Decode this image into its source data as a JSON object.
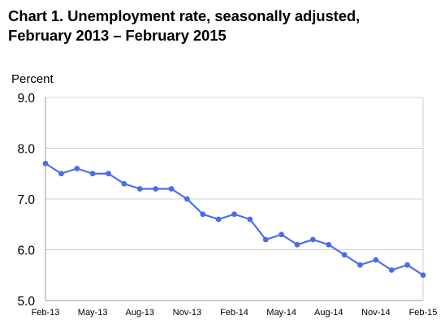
{
  "chart_data": {
    "type": "line",
    "title": "Chart 1. Unemployment rate, seasonally adjusted,",
    "subtitle": "February 2013 – February 2015",
    "ylabel": "Percent",
    "xlabel": "",
    "ylim": [
      5.0,
      9.0
    ],
    "yticks": [
      "9.0",
      "8.0",
      "7.0",
      "6.0",
      "5.0"
    ],
    "ytick_values": [
      9.0,
      8.0,
      7.0,
      6.0,
      5.0
    ],
    "x": [
      "Feb-13",
      "Mar-13",
      "Apr-13",
      "May-13",
      "Jun-13",
      "Jul-13",
      "Aug-13",
      "Sep-13",
      "Oct-13",
      "Nov-13",
      "Dec-13",
      "Jan-14",
      "Feb-14",
      "Mar-14",
      "Apr-14",
      "May-14",
      "Jun-14",
      "Jul-14",
      "Aug-14",
      "Sep-14",
      "Oct-14",
      "Nov-14",
      "Dec-14",
      "Jan-15",
      "Feb-15"
    ],
    "xtick_labels": [
      "Feb-13",
      "May-13",
      "Aug-13",
      "Nov-13",
      "Feb-14",
      "May-14",
      "Aug-14",
      "Nov-14",
      "Feb-15"
    ],
    "xtick_every": 3,
    "series": [
      {
        "values": [
          7.7,
          7.5,
          7.6,
          7.5,
          7.5,
          7.3,
          7.2,
          7.2,
          7.2,
          7.0,
          6.7,
          6.6,
          6.7,
          6.6,
          6.2,
          6.3,
          6.1,
          6.2,
          6.1,
          5.9,
          5.7,
          5.8,
          5.6,
          5.7,
          5.5
        ],
        "color": "#4a6ee8"
      }
    ],
    "grid": true,
    "legend": "none"
  }
}
